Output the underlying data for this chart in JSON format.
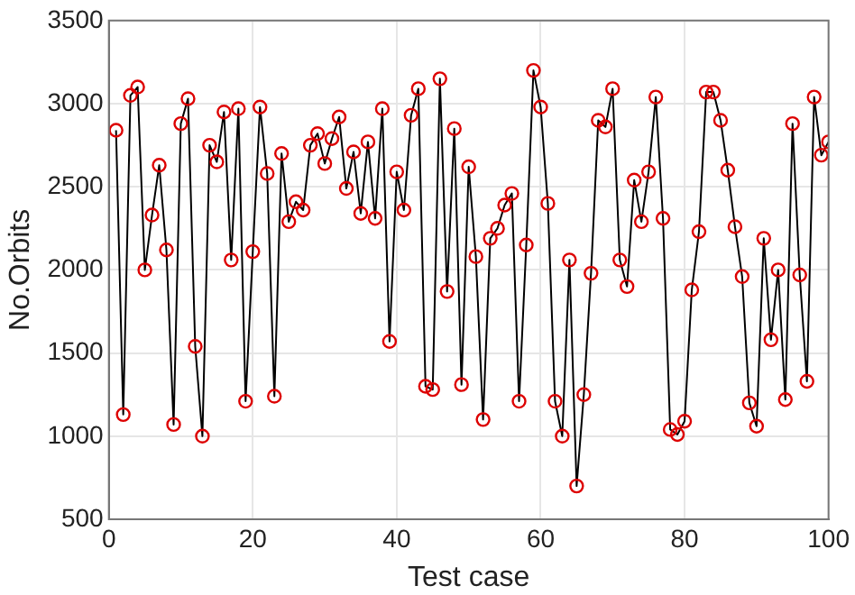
{
  "chart_data": {
    "type": "line",
    "xlabel": "Test case",
    "ylabel": "No.Orbits",
    "xlim": [
      0,
      100
    ],
    "xticks": [
      0,
      20,
      40,
      60,
      80,
      100
    ],
    "ylim": [
      500,
      3500
    ],
    "yticks": [
      500,
      1000,
      1500,
      2000,
      2500,
      3000,
      3500
    ],
    "grid": true,
    "legend": false,
    "marker": "circle",
    "line_style": "solid",
    "x": [
      1,
      2,
      3,
      4,
      5,
      6,
      7,
      8,
      9,
      10,
      11,
      12,
      13,
      14,
      15,
      16,
      17,
      18,
      19,
      20,
      21,
      22,
      23,
      24,
      25,
      26,
      27,
      28,
      29,
      30,
      31,
      32,
      33,
      34,
      35,
      36,
      37,
      38,
      39,
      40,
      41,
      42,
      43,
      44,
      45,
      46,
      47,
      48,
      49,
      50,
      51,
      52,
      53,
      54,
      55,
      56,
      57,
      58,
      59,
      60,
      61,
      62,
      63,
      64,
      65,
      66,
      67,
      68,
      69,
      70,
      71,
      72,
      73,
      74,
      75,
      76,
      77,
      78,
      79,
      80,
      81,
      82,
      83,
      84,
      85,
      86,
      87,
      88,
      89,
      90,
      91,
      92,
      93,
      94,
      95,
      96,
      97,
      98,
      99,
      100
    ],
    "series": [
      {
        "color": "#000000",
        "values": [
          2840,
          1130,
          3050,
          3100,
          2000,
          2330,
          2630,
          2120,
          1070,
          2880,
          3030,
          1540,
          1000,
          2750,
          2650,
          2950,
          2060,
          2970,
          1210,
          2110,
          2980,
          2580,
          1240,
          2700,
          2290,
          2410,
          2360,
          2750,
          2820,
          2640,
          2790,
          2920,
          2490,
          2710,
          2340,
          2770,
          2310,
          2970,
          1570,
          2590,
          2360,
          2930,
          3090,
          1300,
          1280,
          3150,
          1870,
          2850,
          1310,
          2620,
          2080,
          1100,
          2190,
          2250,
          2390,
          2460,
          1210,
          2150,
          3200,
          2980,
          2400,
          1210,
          1000,
          2060,
          700,
          1250,
          1980,
          2900,
          2860,
          3090,
          2060,
          1900,
          2540,
          2290,
          2590,
          3040,
          2310,
          1040,
          1010,
          1090,
          1880,
          2230,
          3070,
          3070,
          2900,
          2600,
          2260,
          1960,
          1200,
          1060,
          2190,
          1580,
          2000,
          1220,
          2880,
          1970,
          1330,
          3040,
          2690,
          2770
        ]
      }
    ]
  }
}
